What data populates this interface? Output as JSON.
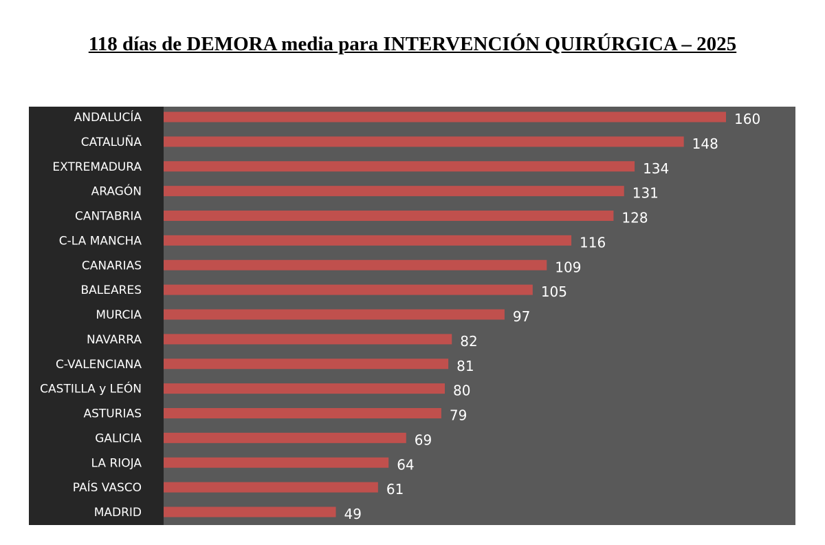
{
  "chart_data": {
    "type": "bar",
    "orientation": "horizontal",
    "title": "118 días de DEMORA media para INTERVENCIÓN QUIRÚRGICA – 2025",
    "categories": [
      "ANDALUCÍA",
      "CATALUÑA",
      "EXTREMADURA",
      "ARAGÓN",
      "CANTABRIA",
      "C-LA MANCHA",
      "CANARIAS",
      "BALEARES",
      "MURCIA",
      "NAVARRA",
      "C-VALENCIANA",
      "CASTILLA y LEÓN",
      "ASTURIAS",
      "GALICIA",
      "LA RIOJA",
      "PAÍS VASCO",
      "MADRID"
    ],
    "values": [
      160,
      148,
      134,
      131,
      128,
      116,
      109,
      105,
      97,
      82,
      81,
      80,
      79,
      69,
      64,
      61,
      49
    ],
    "xlim": [
      0,
      160
    ],
    "grid": false,
    "data_labels": true,
    "colors": {
      "bar": "#c0504d",
      "plot_bg": "#595959",
      "label_bg": "#262626",
      "text": "#ffffff"
    }
  }
}
